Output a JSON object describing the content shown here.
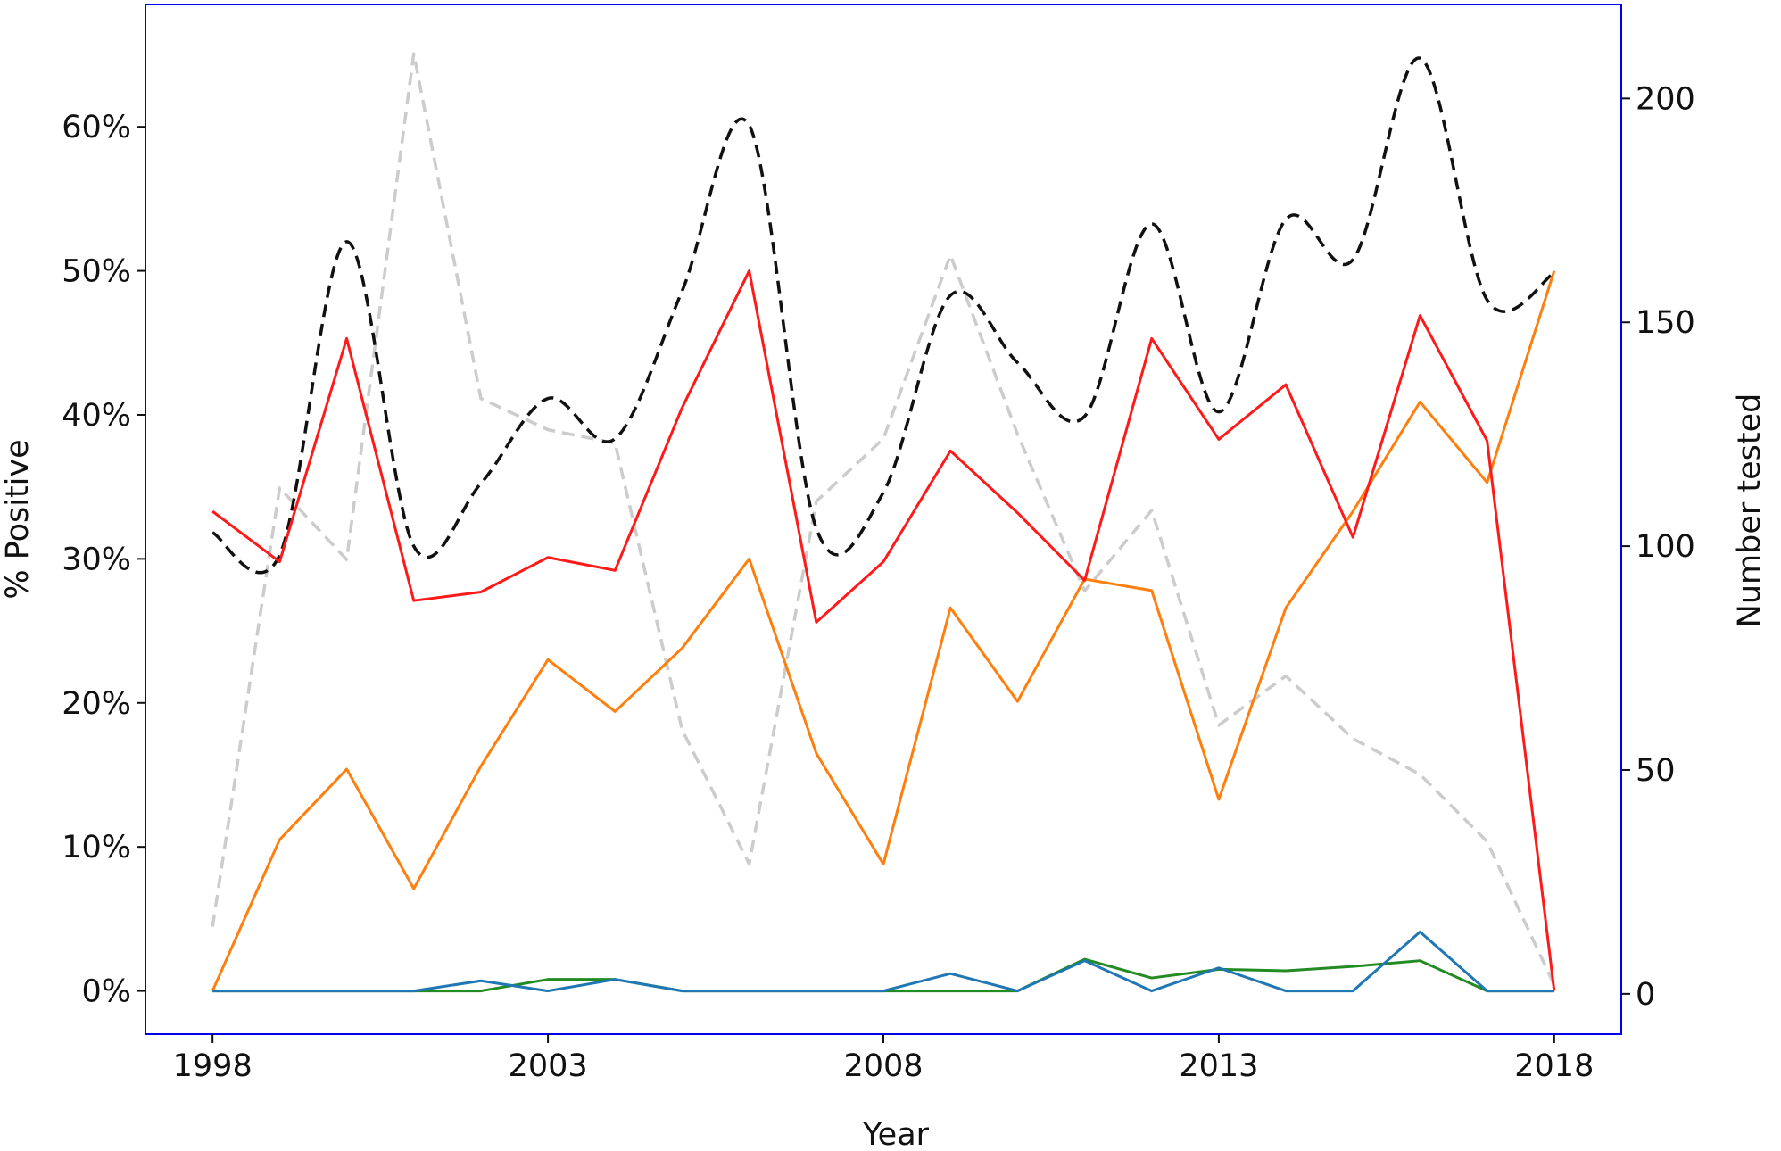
{
  "chart_data": {
    "type": "line",
    "xlabel": "Year",
    "ylabel_left": "% Positive",
    "ylabel_right": "Number tested",
    "x": [
      1998,
      1999,
      2000,
      2001,
      2002,
      2003,
      2004,
      2005,
      2006,
      2007,
      2008,
      2009,
      2010,
      2011,
      2012,
      2013,
      2014,
      2015,
      2016,
      2017,
      2018
    ],
    "xlim": [
      1997,
      2019
    ],
    "xticks": [
      1998,
      2003,
      2008,
      2013,
      2018
    ],
    "ylim_left": [
      -0.03,
      0.685
    ],
    "yticks_left": [
      0,
      0.1,
      0.2,
      0.3,
      0.4,
      0.5,
      0.6
    ],
    "ytick_labels_left": [
      "0%",
      "10%",
      "20%",
      "30%",
      "40%",
      "50%",
      "60%"
    ],
    "ylim_right": [
      -9,
      221
    ],
    "yticks_right": [
      0,
      50,
      100,
      150,
      200
    ],
    "grid": false,
    "series": [
      {
        "axis": "left",
        "color": "#ff1a1a",
        "style": "solid",
        "values": [
          0.333,
          0.298,
          0.453,
          0.271,
          0.277,
          0.301,
          0.292,
          0.405,
          0.5,
          0.256,
          0.298,
          0.375,
          0.332,
          0.285,
          0.453,
          0.383,
          0.421,
          0.315,
          0.469,
          0.382,
          0.0
        ]
      },
      {
        "axis": "left",
        "color": "#ff7f0e",
        "style": "solid",
        "values": [
          0.0,
          0.105,
          0.154,
          0.071,
          0.156,
          0.23,
          0.194,
          0.238,
          0.3,
          0.165,
          0.088,
          0.266,
          0.201,
          0.286,
          0.278,
          0.133,
          0.266,
          0.333,
          0.409,
          0.353,
          0.5
        ]
      },
      {
        "axis": "left",
        "color": "#228b22",
        "style": "solid",
        "values": [
          0,
          0,
          0,
          0,
          0,
          0.008,
          0.008,
          0,
          0,
          0,
          0,
          0,
          0,
          0.022,
          0.009,
          0.015,
          0.014,
          0.017,
          0.021,
          0,
          0
        ]
      },
      {
        "axis": "left",
        "color": "#1f77b4",
        "style": "solid",
        "values": [
          0,
          0,
          0,
          0,
          0.007,
          0,
          0.008,
          0,
          0,
          0,
          0,
          0.012,
          0,
          0.021,
          0,
          0.016,
          0,
          0,
          0.041,
          0,
          0
        ]
      },
      {
        "axis": "right",
        "color": "#cccccc",
        "style": "dashed",
        "values": [
          15,
          113,
          97,
          210,
          133,
          126,
          123,
          59,
          29,
          110,
          124,
          165,
          125,
          90,
          108,
          60,
          71,
          57,
          49,
          34,
          2
        ]
      },
      {
        "axis": "right",
        "color": "#111111",
        "style": "dashed",
        "smooth": true,
        "values": [
          103,
          98,
          168,
          100,
          114,
          133,
          124,
          157,
          194,
          104,
          112,
          156,
          141,
          129,
          172,
          130,
          173,
          164,
          209,
          155,
          161
        ]
      }
    ],
    "colors": {
      "frame": "#0000ee",
      "background": "#ffffff"
    }
  }
}
